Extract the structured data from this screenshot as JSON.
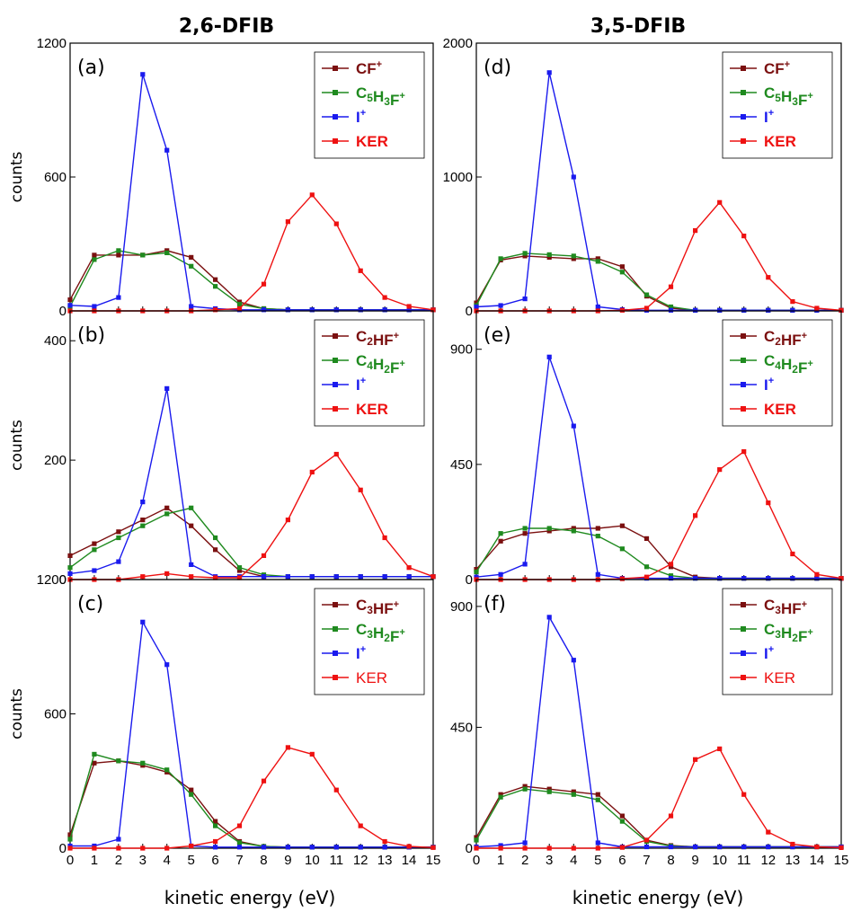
{
  "figure": {
    "col_titles": [
      "2,6-DFIB",
      "3,5-DFIB"
    ],
    "ylabel": "counts",
    "xlabel": "kinetic energy (eV)",
    "colors": {
      "dark_red": "#7b1010",
      "green": "#1f8a1f",
      "blue": "#1a1aee",
      "red": "#ee1111"
    }
  },
  "chart_data": [
    {
      "type": "line",
      "panel": "(a)",
      "xlim": [
        0,
        15
      ],
      "ylim": [
        0,
        1200
      ],
      "yticks": [
        "0",
        "600",
        "1200"
      ],
      "xticks": [
        "0",
        "1",
        "2",
        "3",
        "4",
        "5",
        "6",
        "7",
        "8",
        "9",
        "10",
        "11",
        "12",
        "13",
        "14",
        "15"
      ],
      "x_points": [
        0,
        1,
        2,
        3,
        4,
        5,
        6,
        7,
        8,
        9,
        10,
        11,
        12,
        13,
        14,
        15
      ],
      "legend_placement": "top-right",
      "series": [
        {
          "name": "CF",
          "sup": "+",
          "sub": "",
          "color": "#7b1010",
          "y_points": [
            50,
            250,
            250,
            250,
            270,
            240,
            140,
            40,
            10,
            5,
            5,
            5,
            5,
            5,
            5,
            5
          ]
        },
        {
          "name": "C5H3F",
          "sup": "+",
          "sub": "",
          "color": "#1f8a1f",
          "y_points": [
            20,
            230,
            270,
            250,
            260,
            200,
            110,
            30,
            10,
            5,
            5,
            5,
            5,
            5,
            5,
            5
          ]
        },
        {
          "name": "I",
          "sup": "+",
          "sub": "",
          "color": "#1a1aee",
          "y_points": [
            25,
            20,
            60,
            1060,
            720,
            20,
            10,
            5,
            5,
            5,
            5,
            5,
            5,
            5,
            5,
            5
          ]
        },
        {
          "name": "KER",
          "sup": "",
          "sub": "",
          "color": "#ee1111",
          "y_points": [
            0,
            0,
            0,
            0,
            0,
            0,
            5,
            10,
            120,
            400,
            520,
            390,
            180,
            60,
            20,
            5
          ]
        }
      ]
    },
    {
      "type": "line",
      "panel": "(b)",
      "xlim": [
        0,
        15
      ],
      "ylim": [
        0,
        450
      ],
      "yticks": [
        "0",
        "200",
        "400"
      ],
      "xticks": [],
      "x_points": [
        0,
        1,
        2,
        3,
        4,
        5,
        6,
        7,
        8,
        9,
        10,
        11,
        12,
        13,
        14,
        15
      ],
      "legend_placement": "top-right",
      "series": [
        {
          "name": "C2HF",
          "sup": "+",
          "sub": "",
          "color": "#7b1010",
          "y_points": [
            40,
            60,
            80,
            100,
            120,
            90,
            50,
            15,
            5,
            5,
            5,
            5,
            5,
            5,
            5,
            5
          ]
        },
        {
          "name": "C4H2F",
          "sup": "+",
          "sub": "",
          "color": "#1f8a1f",
          "y_points": [
            20,
            50,
            70,
            90,
            110,
            120,
            70,
            20,
            8,
            5,
            5,
            5,
            5,
            5,
            5,
            5
          ]
        },
        {
          "name": "I",
          "sup": "+",
          "sub": "",
          "color": "#1a1aee",
          "y_points": [
            10,
            15,
            30,
            130,
            320,
            25,
            5,
            5,
            5,
            5,
            5,
            5,
            5,
            5,
            5,
            5
          ]
        },
        {
          "name": "KER",
          "sup": "",
          "sub": "",
          "color": "#ee1111",
          "y_points": [
            0,
            0,
            0,
            5,
            10,
            5,
            3,
            3,
            40,
            100,
            180,
            210,
            150,
            70,
            20,
            5
          ]
        }
      ]
    },
    {
      "type": "line",
      "panel": "(c)",
      "xlim": [
        0,
        15
      ],
      "ylim": [
        0,
        1200
      ],
      "yticks": [
        "0",
        "600",
        "1200"
      ],
      "xticks": [],
      "x_points": [
        0,
        1,
        2,
        3,
        4,
        5,
        6,
        7,
        8,
        9,
        10,
        11,
        12,
        13,
        14,
        15
      ],
      "legend_placement": "top-right",
      "series": [
        {
          "name": "C3HF",
          "sup": "+",
          "sub": "",
          "color": "#7b1010",
          "y_points": [
            60,
            380,
            390,
            370,
            340,
            260,
            120,
            30,
            8,
            5,
            5,
            5,
            5,
            5,
            5,
            5
          ]
        },
        {
          "name": "C3H2F",
          "sup": "+",
          "sub": "",
          "color": "#1f8a1f",
          "y_points": [
            40,
            420,
            390,
            380,
            350,
            240,
            100,
            25,
            8,
            5,
            5,
            5,
            5,
            5,
            5,
            5
          ]
        },
        {
          "name": "I",
          "sup": "+",
          "sub": "",
          "color": "#1a1aee",
          "y_points": [
            10,
            10,
            40,
            1010,
            820,
            10,
            5,
            5,
            5,
            5,
            5,
            5,
            5,
            5,
            5,
            5
          ]
        },
        {
          "name": "KER",
          "sup": "",
          "sub": "",
          "color": "#ee1111",
          "y_points": [
            0,
            0,
            0,
            0,
            0,
            10,
            30,
            100,
            300,
            450,
            420,
            260,
            100,
            30,
            8,
            3
          ]
        }
      ]
    },
    {
      "type": "line",
      "panel": "(d)",
      "xlim": [
        0,
        15
      ],
      "ylim": [
        0,
        2000
      ],
      "yticks": [
        "0",
        "1000",
        "2000"
      ],
      "xticks": [],
      "x_points": [
        0,
        1,
        2,
        3,
        4,
        5,
        6,
        7,
        8,
        9,
        10,
        11,
        12,
        13,
        14,
        15
      ],
      "legend_placement": "top-right",
      "series": [
        {
          "name": "CF",
          "sup": "+",
          "sub": "",
          "color": "#7b1010",
          "y_points": [
            60,
            380,
            410,
            400,
            390,
            390,
            330,
            110,
            20,
            5,
            5,
            5,
            5,
            5,
            5,
            5
          ]
        },
        {
          "name": "C5H3F",
          "sup": "+",
          "sub": "",
          "color": "#1f8a1f",
          "y_points": [
            40,
            390,
            430,
            420,
            410,
            370,
            290,
            120,
            30,
            5,
            5,
            5,
            5,
            5,
            5,
            5
          ]
        },
        {
          "name": "I",
          "sup": "+",
          "sub": "",
          "color": "#1a1aee",
          "y_points": [
            30,
            40,
            90,
            1780,
            1000,
            30,
            10,
            5,
            5,
            5,
            5,
            5,
            5,
            5,
            5,
            5
          ]
        },
        {
          "name": "KER",
          "sup": "",
          "sub": "",
          "color": "#ee1111",
          "y_points": [
            0,
            0,
            0,
            0,
            0,
            0,
            5,
            20,
            180,
            600,
            810,
            560,
            250,
            70,
            20,
            5
          ]
        }
      ]
    },
    {
      "type": "line",
      "panel": "(e)",
      "xlim": [
        0,
        15
      ],
      "ylim": [
        0,
        1050
      ],
      "yticks": [
        "0",
        "450",
        "900"
      ],
      "xticks": [],
      "x_points": [
        0,
        1,
        2,
        3,
        4,
        5,
        6,
        7,
        8,
        9,
        10,
        11,
        12,
        13,
        14,
        15
      ],
      "legend_placement": "top-right",
      "series": [
        {
          "name": "C2HF",
          "sup": "+",
          "sub": "",
          "color": "#7b1010",
          "y_points": [
            40,
            150,
            180,
            190,
            200,
            200,
            210,
            160,
            50,
            10,
            5,
            5,
            5,
            5,
            5,
            5
          ]
        },
        {
          "name": "C4H2F",
          "sup": "+",
          "sub": "",
          "color": "#1f8a1f",
          "y_points": [
            30,
            180,
            200,
            200,
            190,
            170,
            120,
            50,
            15,
            5,
            5,
            5,
            5,
            5,
            5,
            5
          ]
        },
        {
          "name": "I",
          "sup": "+",
          "sub": "",
          "color": "#1a1aee",
          "y_points": [
            10,
            20,
            60,
            870,
            600,
            20,
            5,
            5,
            5,
            5,
            5,
            5,
            5,
            5,
            5,
            5
          ]
        },
        {
          "name": "KER",
          "sup": "",
          "sub": "",
          "color": "#ee1111",
          "y_points": [
            0,
            0,
            0,
            0,
            0,
            0,
            3,
            10,
            60,
            250,
            430,
            500,
            300,
            100,
            20,
            5
          ]
        }
      ]
    },
    {
      "type": "line",
      "panel": "(f)",
      "xlim": [
        0,
        15
      ],
      "ylim": [
        0,
        1000
      ],
      "yticks": [
        "0",
        "450",
        "900"
      ],
      "xticks": [
        "0",
        "1",
        "2",
        "3",
        "4",
        "5",
        "6",
        "7",
        "8",
        "9",
        "10",
        "11",
        "12",
        "13",
        "14",
        "15"
      ],
      "x_points": [
        0,
        1,
        2,
        3,
        4,
        5,
        6,
        7,
        8,
        9,
        10,
        11,
        12,
        13,
        14,
        15
      ],
      "legend_placement": "top-right",
      "series": [
        {
          "name": "C3HF",
          "sup": "+",
          "sub": "",
          "color": "#7b1010",
          "y_points": [
            40,
            200,
            230,
            220,
            210,
            200,
            120,
            30,
            10,
            5,
            5,
            5,
            5,
            5,
            5,
            5
          ]
        },
        {
          "name": "C3H2F",
          "sup": "+",
          "sub": "",
          "color": "#1f8a1f",
          "y_points": [
            30,
            190,
            220,
            210,
            200,
            180,
            100,
            25,
            8,
            5,
            5,
            5,
            5,
            5,
            5,
            5
          ]
        },
        {
          "name": "I",
          "sup": "+",
          "sub": "",
          "color": "#1a1aee",
          "y_points": [
            5,
            10,
            20,
            860,
            700,
            20,
            5,
            5,
            5,
            5,
            5,
            5,
            5,
            5,
            5,
            5
          ]
        },
        {
          "name": "KER",
          "sup": "",
          "sub": "",
          "color": "#ee1111",
          "y_points": [
            0,
            0,
            0,
            0,
            0,
            0,
            3,
            30,
            120,
            330,
            370,
            200,
            60,
            15,
            5,
            2
          ]
        }
      ]
    }
  ],
  "legend_labels": [
    [
      [
        "CF",
        "+"
      ],
      [
        "C5H3F",
        "+"
      ],
      [
        "I",
        "+"
      ],
      [
        "KER",
        ""
      ]
    ],
    [
      [
        "C2HF",
        "+"
      ],
      [
        "C4H2F",
        "+"
      ],
      [
        "I",
        "+"
      ],
      [
        "KER",
        ""
      ]
    ],
    [
      [
        "C3HF",
        "+"
      ],
      [
        "C3H2F",
        "+"
      ],
      [
        "I",
        "+"
      ],
      [
        "KER",
        ""
      ]
    ],
    [
      [
        "CF",
        "+"
      ],
      [
        "C5H3F",
        "+"
      ],
      [
        "I",
        "+"
      ],
      [
        "KER",
        ""
      ]
    ],
    [
      [
        "C2HF",
        "+"
      ],
      [
        "C4H2F",
        "+"
      ],
      [
        "I",
        "+"
      ],
      [
        "KER",
        ""
      ]
    ],
    [
      [
        "C3HF",
        "+"
      ],
      [
        "C3H2F",
        "+"
      ],
      [
        "I",
        "+"
      ],
      [
        "KER",
        ""
      ]
    ]
  ]
}
